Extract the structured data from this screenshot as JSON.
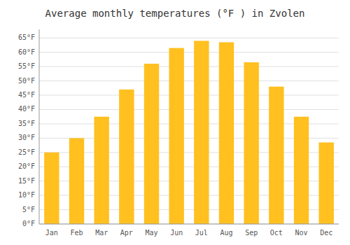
{
  "chart_data": {
    "type": "bar",
    "title": "Average monthly temperatures (°F ) in Zvolen",
    "categories": [
      "Jan",
      "Feb",
      "Mar",
      "Apr",
      "May",
      "Jun",
      "Jul",
      "Aug",
      "Sep",
      "Oct",
      "Nov",
      "Dec"
    ],
    "values": [
      25,
      30,
      37.5,
      47,
      56,
      61.5,
      64,
      63.5,
      56.5,
      48,
      37.5,
      28.5
    ],
    "color": "#FFC020",
    "ylim": [
      0,
      68
    ],
    "yticks": [
      {
        "value": 0,
        "label": "0°F"
      },
      {
        "value": 5,
        "label": "5°F"
      },
      {
        "value": 10,
        "label": "10°F"
      },
      {
        "value": 15,
        "label": "15°F"
      },
      {
        "value": 20,
        "label": "20°F"
      },
      {
        "value": 25,
        "label": "25°F"
      },
      {
        "value": 30,
        "label": "30°F"
      },
      {
        "value": 35,
        "label": "35°F"
      },
      {
        "value": 40,
        "label": "40°F"
      },
      {
        "value": 45,
        "label": "45°F"
      },
      {
        "value": 50,
        "label": "50°F"
      },
      {
        "value": 55,
        "label": "55°F"
      },
      {
        "value": 60,
        "label": "60°F"
      },
      {
        "value": 65,
        "label": "65°F"
      }
    ],
    "grid": true
  }
}
